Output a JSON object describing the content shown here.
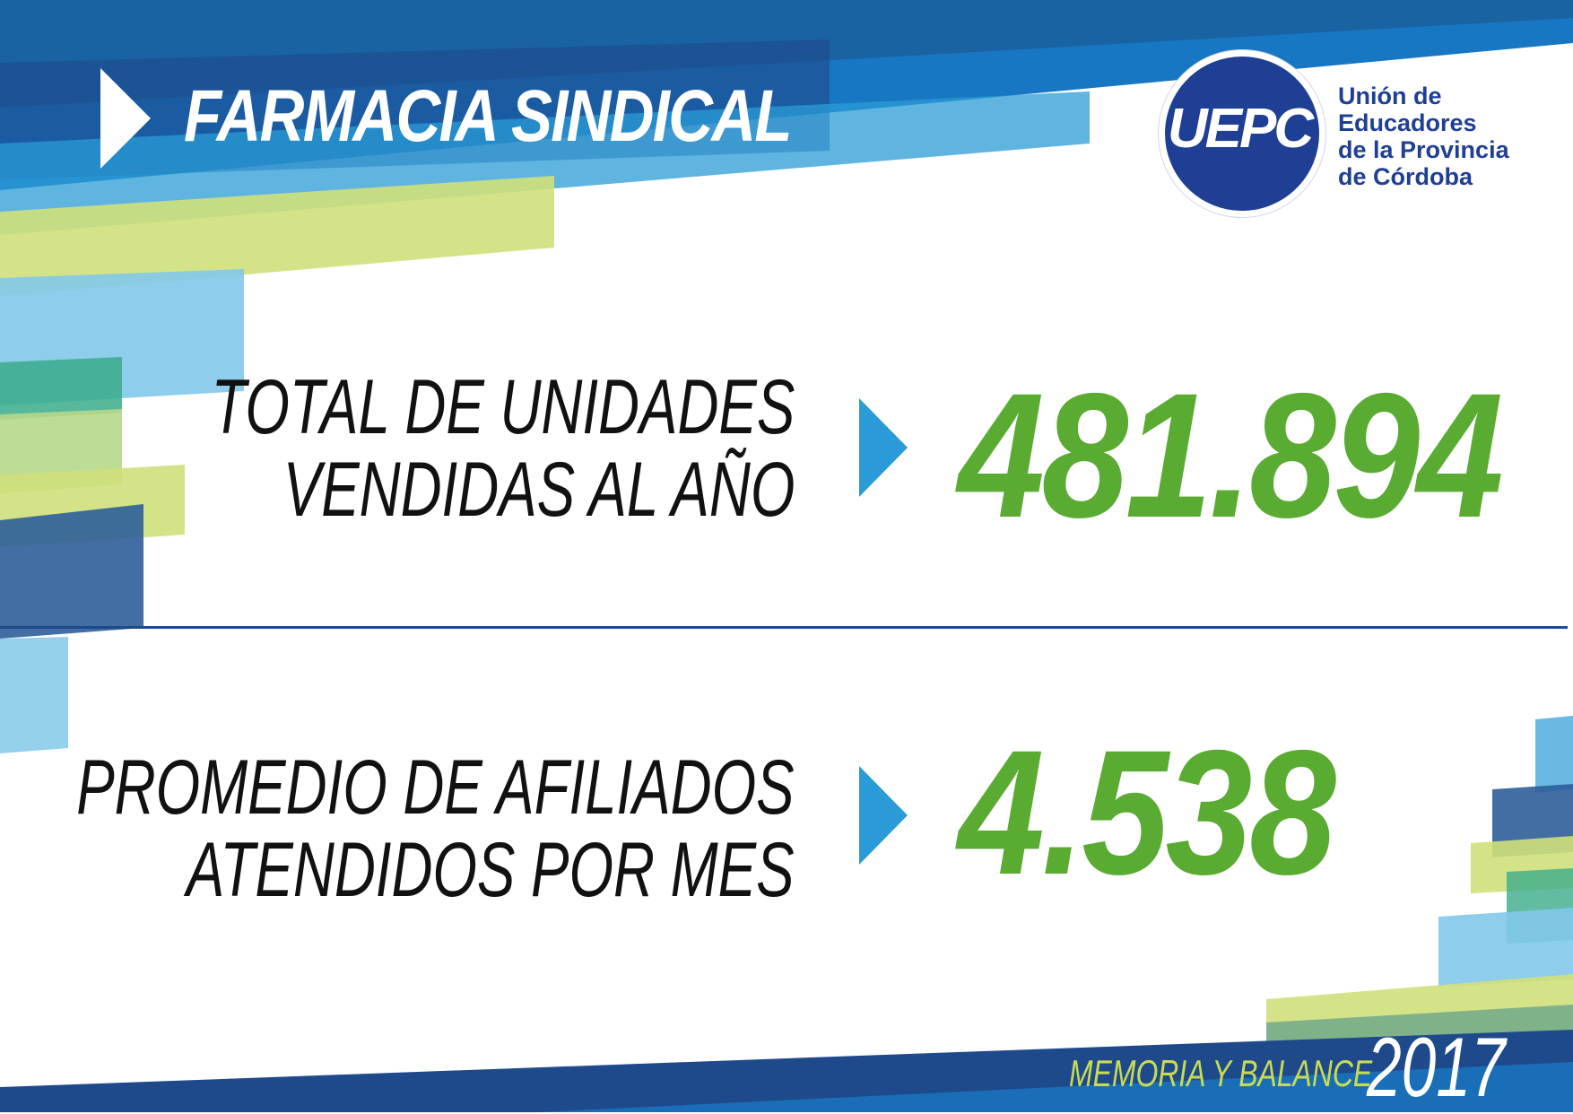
{
  "header": {
    "title": "FARMACIA SINDICAL"
  },
  "logo": {
    "acronym": "UEPC",
    "org_lines": [
      "Unión de",
      "Educadores",
      "de la Provincia",
      "de Córdoba"
    ]
  },
  "stats": [
    {
      "label_lines": [
        "TOTAL DE UNIDADES",
        "VENDIDAS AL AÑO"
      ],
      "value": "481.894"
    },
    {
      "label_lines": [
        "PROMEDIO DE AFILIADOS",
        "ATENDIDOS POR MES"
      ],
      "value": "4.538"
    }
  ],
  "footer": {
    "label": "MEMORIA Y BALANCE",
    "year": "2017"
  },
  "colors": {
    "dark_blue": "#1e4a8c",
    "mid_blue": "#1877c2",
    "light_blue": "#2a9bd6",
    "sky_blue": "#82c8ea",
    "lime": "#cfe07a",
    "green": "#5aab32",
    "logo_navy": "#1e3f94"
  },
  "icons": {
    "title_arrow": "play-triangle-icon",
    "stat_arrow": "play-triangle-icon"
  }
}
